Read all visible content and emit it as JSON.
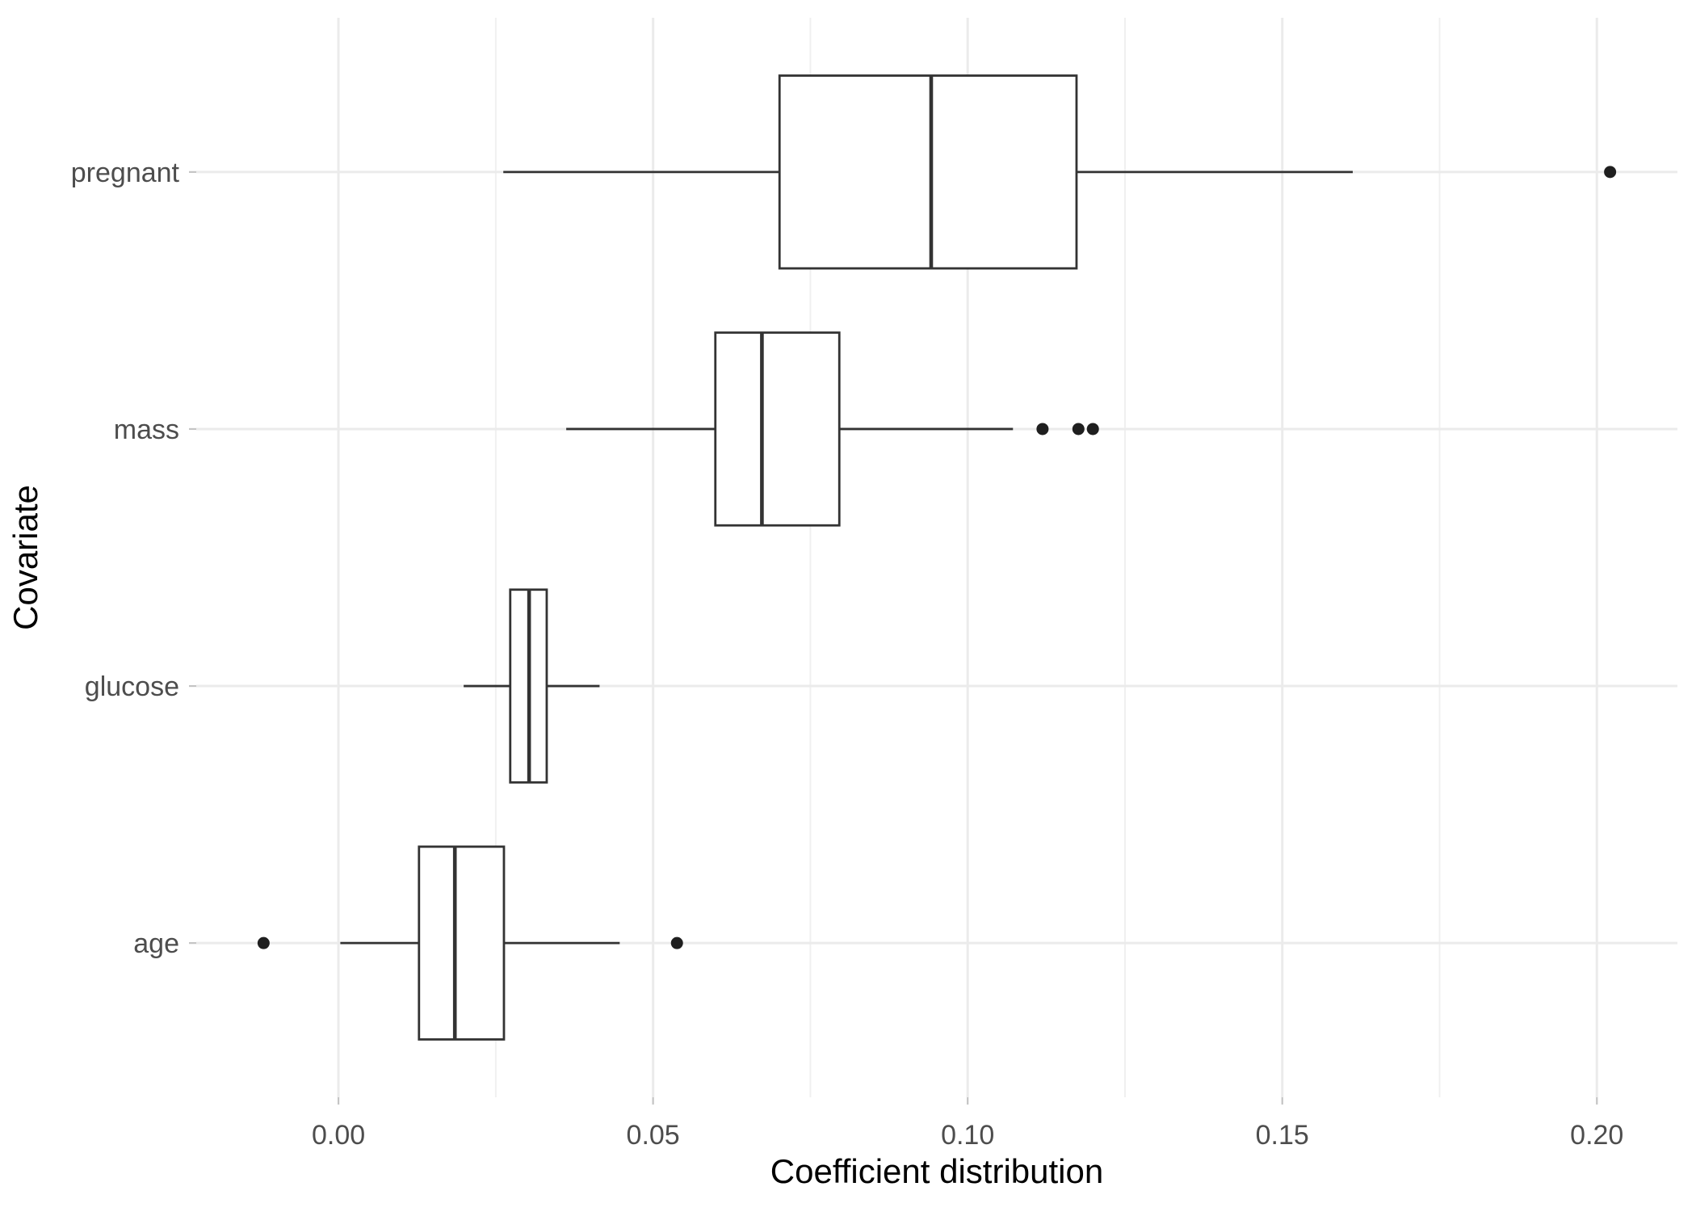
{
  "chart_data": {
    "type": "boxplot",
    "orientation": "horizontal",
    "title": "",
    "xlabel": "Coefficient distribution",
    "ylabel": "Covariate",
    "categories_bottom_to_top": [
      "age",
      "glucose",
      "mass",
      "pregnant"
    ],
    "series": [
      {
        "category": "pregnant",
        "whisker_low": 0.0262,
        "q1": 0.0701,
        "median": 0.0942,
        "q3": 0.1173,
        "whisker_high": 0.1612,
        "outliers": [
          0.2021
        ]
      },
      {
        "category": "mass",
        "whisker_low": 0.0362,
        "q1": 0.0599,
        "median": 0.0673,
        "q3": 0.0796,
        "whisker_high": 0.1072,
        "outliers": [
          0.1119,
          0.1176,
          0.1199
        ]
      },
      {
        "category": "glucose",
        "whisker_low": 0.0199,
        "q1": 0.0273,
        "median": 0.0303,
        "q3": 0.0331,
        "whisker_high": 0.0415,
        "outliers": []
      },
      {
        "category": "age",
        "whisker_low": 0.0003,
        "q1": 0.0128,
        "median": 0.0185,
        "q3": 0.0263,
        "whisker_high": 0.0447,
        "outliers": [
          -0.0119,
          0.0538
        ]
      }
    ],
    "x_ticks": [
      {
        "label": "0.00",
        "value": 0.0
      },
      {
        "label": "0.05",
        "value": 0.05
      },
      {
        "label": "0.10",
        "value": 0.1
      },
      {
        "label": "0.15",
        "value": 0.15
      },
      {
        "label": "0.20",
        "value": 0.2
      }
    ],
    "x_minor_values": [
      0.025,
      0.075,
      0.125,
      0.175
    ],
    "xlim": [
      -0.0226,
      0.2128
    ],
    "grid": true,
    "legend": false,
    "colors": {
      "background": "#ffffff",
      "grid_major": "#ebebeb",
      "grid_minor": "#f0f0f0",
      "box_stroke": "#333333",
      "box_fill": "#ffffff",
      "outlier_fill": "#1f1f1f",
      "tick_mark": "#c4c4c4",
      "tick_label": "#4d4d4d",
      "axis_title": "#000000"
    }
  }
}
